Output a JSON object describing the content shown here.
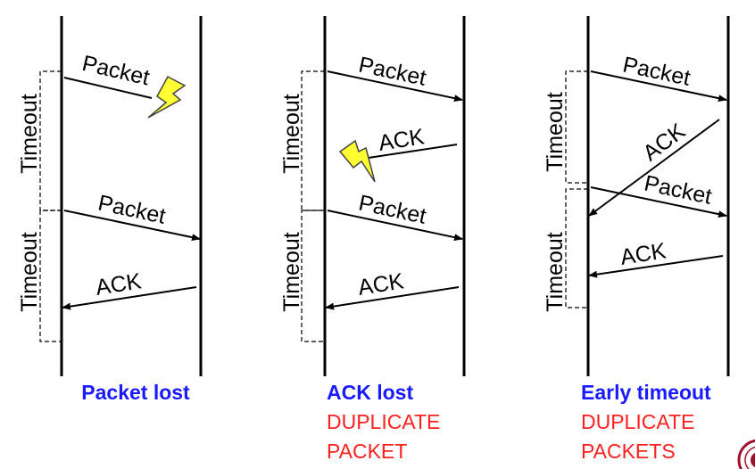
{
  "scenarios": [
    {
      "caption": "Packet lost",
      "subcaption": [],
      "packet_label": "Packet",
      "retransmit_label": "Packet",
      "ack_label": "ACK",
      "timeout_label": "Timeout",
      "timeout2_label": "Timeout"
    },
    {
      "caption": "ACK lost",
      "subcaption": [
        "DUPLICATE",
        "PACKET"
      ],
      "packet_label": "Packet",
      "lost_ack_label": "ACK",
      "retransmit_label": "Packet",
      "ack_label": "ACK",
      "timeout_label": "Timeout",
      "timeout2_label": "Timeout"
    },
    {
      "caption": "Early timeout",
      "subcaption": [
        "DUPLICATE",
        "PACKETS"
      ],
      "packet_label": "Packet",
      "ack1_label": "ACK",
      "retransmit_label": "Packet",
      "ack2_label": "ACK",
      "timeout_label": "Timeout",
      "timeout2_label": "Timeout"
    }
  ],
  "colors": {
    "caption": "#1a1aff",
    "subcaption": "#ff2020",
    "lightning_fill": "#ffff33",
    "lightning_stroke": "#444444"
  }
}
